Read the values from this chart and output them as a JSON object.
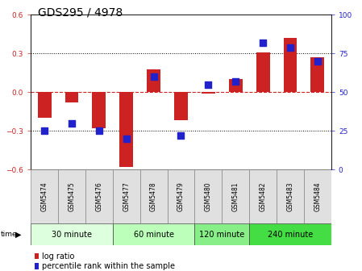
{
  "title": "GDS295 / 4978",
  "samples": [
    "GSM5474",
    "GSM5475",
    "GSM5476",
    "GSM5477",
    "GSM5478",
    "GSM5479",
    "GSM5480",
    "GSM5481",
    "GSM5482",
    "GSM5483",
    "GSM5484"
  ],
  "log_ratio": [
    -0.2,
    -0.08,
    -0.28,
    -0.58,
    0.18,
    -0.22,
    -0.01,
    0.1,
    0.31,
    0.42,
    0.27
  ],
  "percentile_rank": [
    25,
    30,
    25,
    20,
    60,
    22,
    55,
    57,
    82,
    79,
    70
  ],
  "ylim_left": [
    -0.6,
    0.6
  ],
  "ylim_right": [
    0,
    100
  ],
  "yticks_left": [
    -0.6,
    -0.3,
    0,
    0.3,
    0.6
  ],
  "yticks_right": [
    0,
    25,
    50,
    75,
    100
  ],
  "bar_color": "#cc2222",
  "dot_color": "#2222cc",
  "zero_line_color": "#cc2222",
  "groups": [
    {
      "label": "30 minute",
      "start": 0,
      "end": 3,
      "color": "#ddffdd"
    },
    {
      "label": "60 minute",
      "start": 3,
      "end": 6,
      "color": "#bbffbb"
    },
    {
      "label": "120 minute",
      "start": 6,
      "end": 8,
      "color": "#88ee88"
    },
    {
      "label": "240 minute",
      "start": 8,
      "end": 11,
      "color": "#44dd44"
    }
  ],
  "bar_width": 0.5,
  "dot_size": 28,
  "title_fontsize": 10,
  "tick_fontsize": 6.5,
  "sample_fontsize": 5.5,
  "group_fontsize": 7,
  "legend_fontsize": 7
}
